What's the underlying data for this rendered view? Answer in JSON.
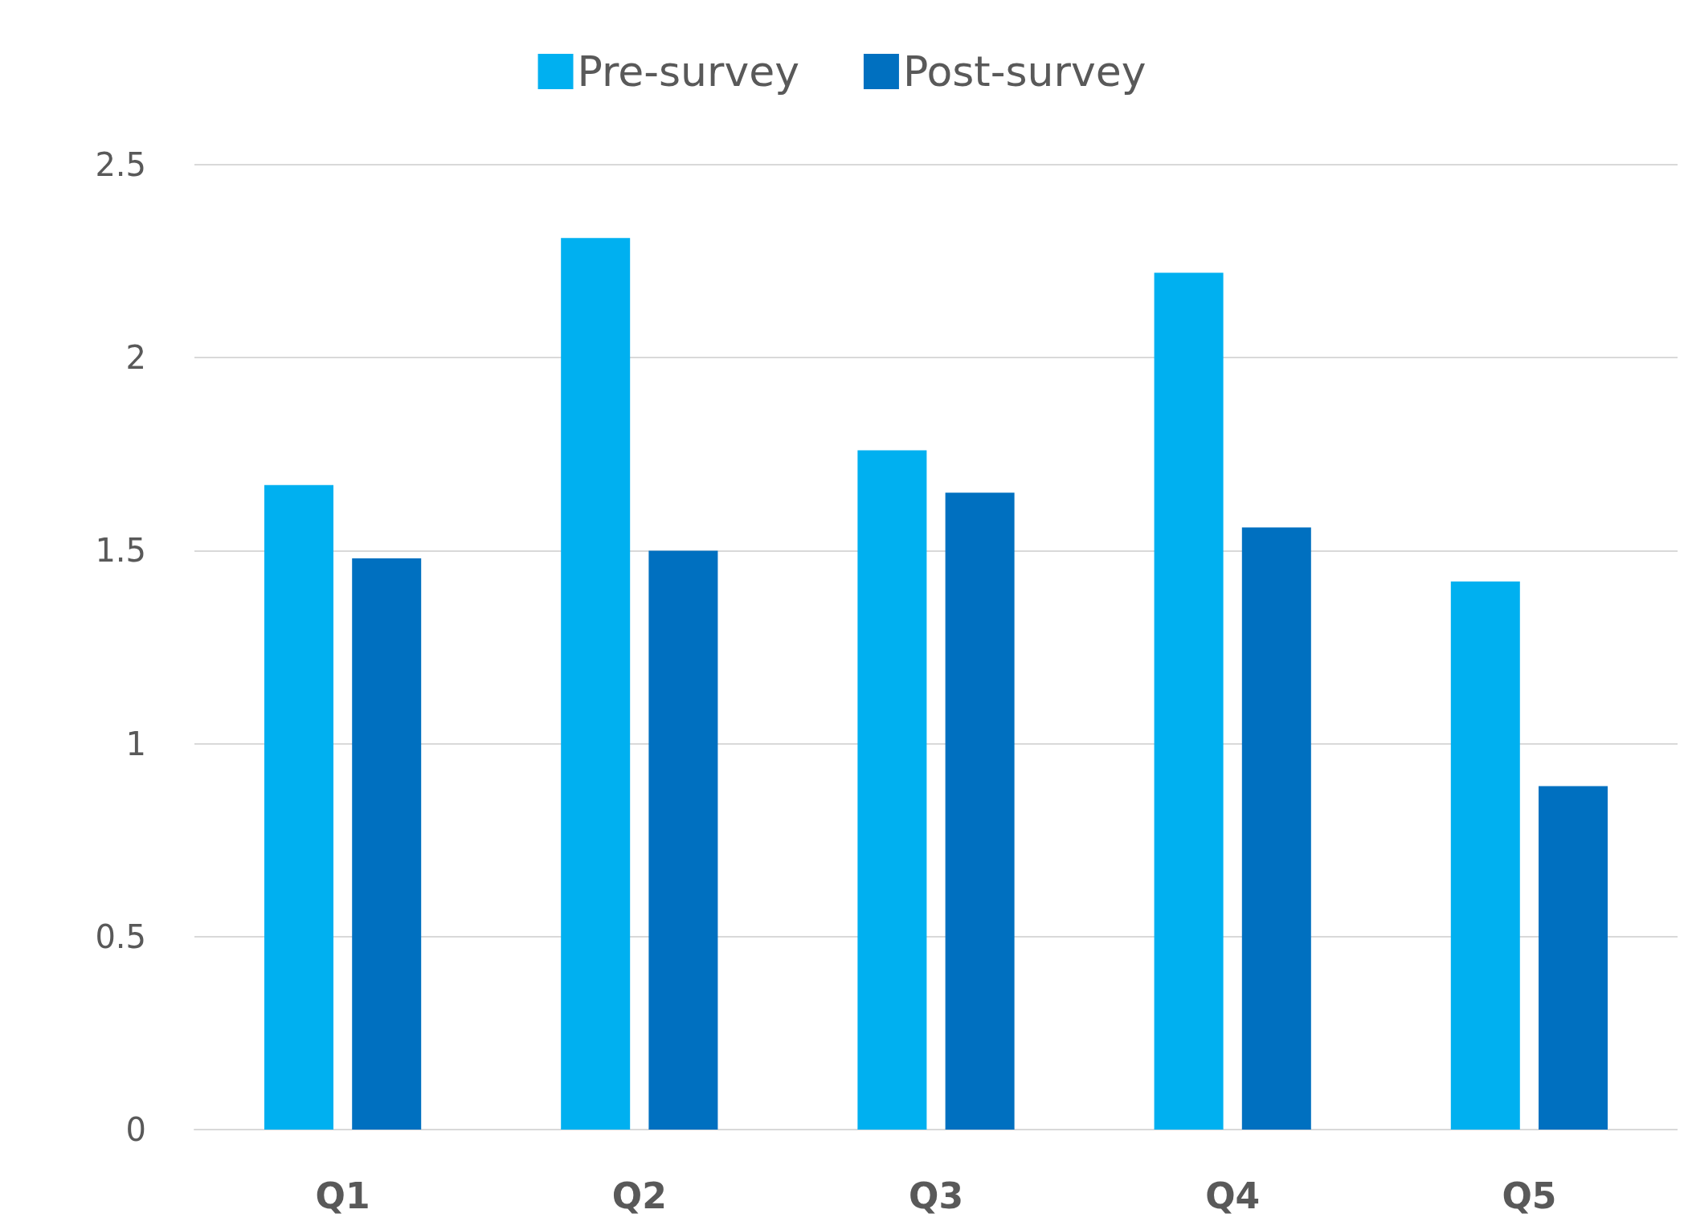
{
  "chart_data": {
    "type": "bar",
    "categories": [
      "Q1",
      "Q2",
      "Q3",
      "Q4",
      "Q5"
    ],
    "series": [
      {
        "name": "Pre-survey",
        "color": "#00b0f0",
        "values": [
          1.67,
          2.31,
          1.76,
          2.22,
          1.42
        ]
      },
      {
        "name": "Post-survey",
        "color": "#0070c0",
        "values": [
          1.48,
          1.5,
          1.65,
          1.56,
          0.89
        ]
      }
    ],
    "ylim": [
      0,
      2.5
    ],
    "yticks": [
      0,
      0.5,
      1,
      1.5,
      2,
      2.5
    ],
    "grid": "y",
    "legend": "top"
  }
}
